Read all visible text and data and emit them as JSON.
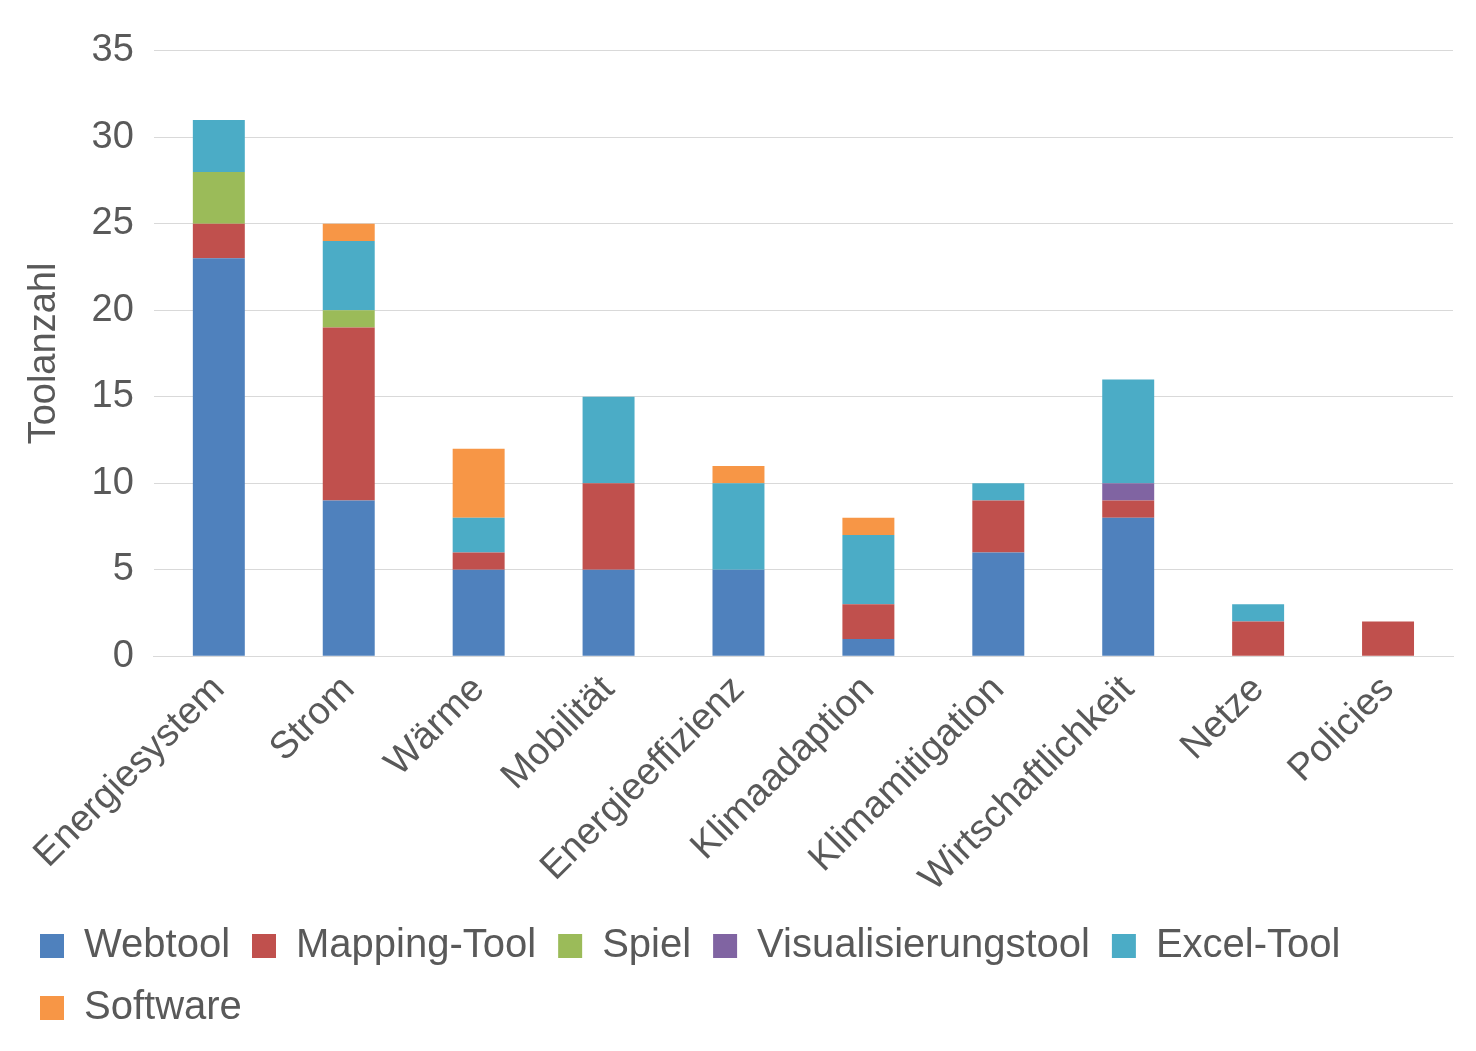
{
  "chart_data": {
    "type": "bar",
    "stacked": true,
    "ylabel": "Toolanzahl",
    "categories": [
      "Energiesystem",
      "Strom",
      "Wärme",
      "Mobilität",
      "Energieeffizienz",
      "Klimaadaption",
      "Klimamitigation",
      "Wirtschaftlichkeit",
      "Netze",
      "Policies"
    ],
    "series": [
      {
        "name": "Webtool",
        "color": "#4f81bd",
        "values": [
          23,
          9,
          5,
          5,
          5,
          1,
          6,
          8,
          null,
          null
        ]
      },
      {
        "name": "Mapping-Tool",
        "color": "#c0504d",
        "values": [
          2,
          10,
          1,
          5,
          null,
          2,
          3,
          1,
          2,
          2
        ]
      },
      {
        "name": "Spiel",
        "color": "#9bbb59",
        "values": [
          3,
          1,
          null,
          null,
          null,
          null,
          null,
          null,
          null,
          null
        ]
      },
      {
        "name": "Visualisierungstool",
        "color": "#8064a2",
        "values": [
          null,
          null,
          null,
          null,
          null,
          null,
          null,
          1,
          null,
          null
        ]
      },
      {
        "name": "Excel-Tool",
        "color": "#4bacc6",
        "values": [
          3,
          4,
          2,
          5,
          5,
          4,
          1,
          6,
          1,
          null
        ]
      },
      {
        "name": "Software",
        "color": "#f79646",
        "values": [
          null,
          1,
          4,
          null,
          1,
          1,
          null,
          null,
          null,
          null
        ]
      }
    ],
    "ylim": [
      0,
      35
    ],
    "yticks": [
      0,
      5,
      10,
      15,
      20,
      25,
      30,
      35
    ],
    "grid": "y",
    "legend": "bottom"
  }
}
